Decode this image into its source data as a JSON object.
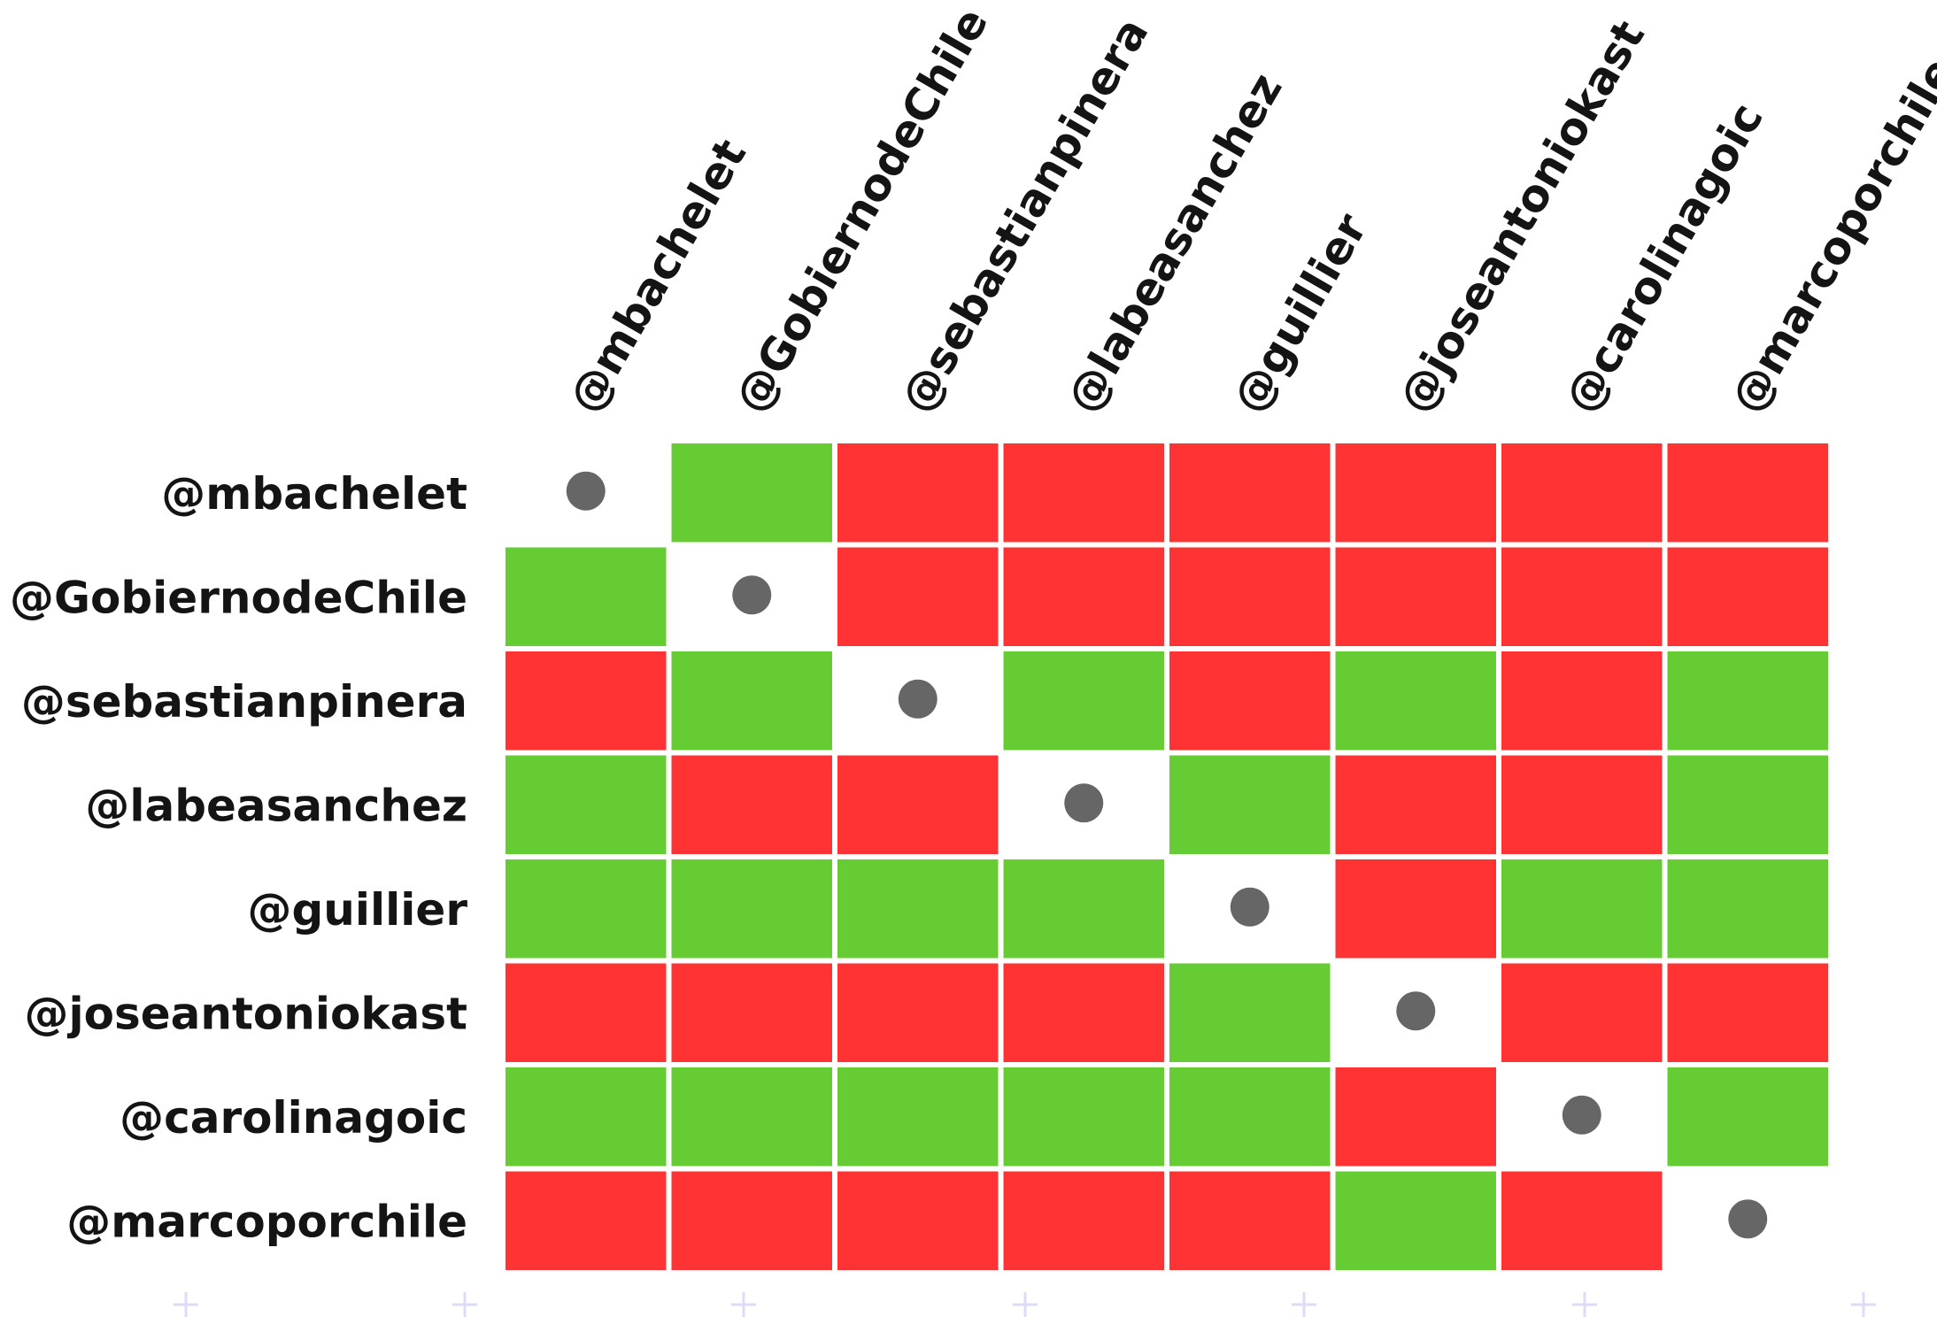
{
  "chart_data": {
    "type": "heatmap",
    "rows": [
      "@mbachelet",
      "@GobiernodeChile",
      "@sebastianpinera",
      "@labeasanchez",
      "@guillier",
      "@joseantoniokast",
      "@carolinagoic",
      "@marcoporchile"
    ],
    "columns": [
      "@mbachelet",
      "@GobiernodeChile",
      "@sebastianpinera",
      "@labeasanchez",
      "@guillier",
      "@joseantoniokast",
      "@carolinagoic",
      "@marcoporchile"
    ],
    "cell_states": [
      "green",
      "red",
      "diagonal"
    ],
    "values": [
      [
        "diagonal",
        "green",
        "red",
        "red",
        "red",
        "red",
        "red",
        "red"
      ],
      [
        "green",
        "diagonal",
        "red",
        "red",
        "red",
        "red",
        "red",
        "red"
      ],
      [
        "red",
        "green",
        "diagonal",
        "green",
        "red",
        "green",
        "red",
        "green"
      ],
      [
        "green",
        "red",
        "red",
        "diagonal",
        "green",
        "red",
        "red",
        "green"
      ],
      [
        "green",
        "green",
        "green",
        "green",
        "diagonal",
        "red",
        "green",
        "green"
      ],
      [
        "red",
        "red",
        "red",
        "red",
        "green",
        "diagonal",
        "red",
        "red"
      ],
      [
        "green",
        "green",
        "green",
        "green",
        "green",
        "red",
        "diagonal",
        "green"
      ],
      [
        "red",
        "red",
        "red",
        "red",
        "red",
        "green",
        "red",
        "diagonal"
      ]
    ],
    "colors": {
      "green": "#66cc33",
      "red": "#ff3333",
      "diagonal_marker": "#666666",
      "label": "#141414",
      "plus_marker": "#dcdcf6"
    },
    "grid": false,
    "legend": "none"
  }
}
